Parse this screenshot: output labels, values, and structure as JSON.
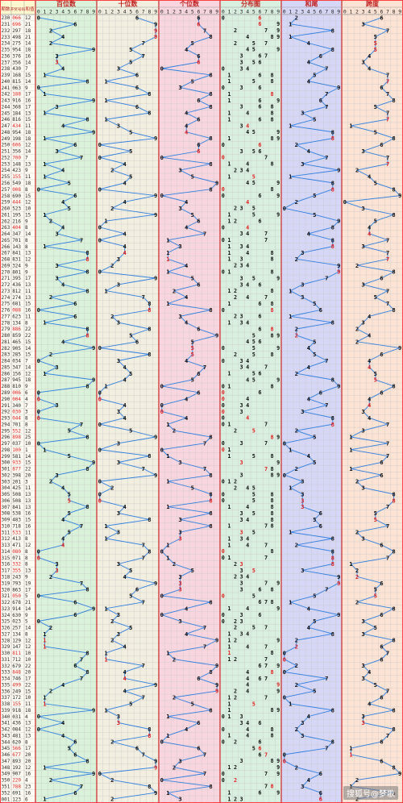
{
  "chart_data": {
    "type": "table",
    "columns": {
      "period": "期数",
      "draw": "开奖号码",
      "sum": "和值"
    },
    "sections": [
      {
        "key": "hundreds",
        "title": "百位数",
        "color": "#d9f2d9"
      },
      {
        "key": "tens",
        "title": "十位数",
        "color": "#f2efe0"
      },
      {
        "key": "ones",
        "title": "个位数",
        "color": "#f9d6df"
      },
      {
        "key": "distribution",
        "title": "分布图",
        "color": "#d9f0e0"
      },
      {
        "key": "sum_tail",
        "title": "和尾",
        "color": "#d6d6f7"
      },
      {
        "key": "span",
        "title": "跨度",
        "color": "#fde3d4"
      }
    ],
    "digits": [
      "0",
      "1",
      "2",
      "3",
      "4",
      "5",
      "6",
      "7",
      "8",
      "9"
    ],
    "rows": [
      {
        "period": "230",
        "draw": "066"
      },
      {
        "period": "231",
        "draw": "696"
      },
      {
        "period": "232",
        "draw": "297"
      },
      {
        "period": "233",
        "draw": "498"
      },
      {
        "period": "234",
        "draw": "275"
      },
      {
        "period": "235",
        "draw": "954"
      },
      {
        "period": "236",
        "draw": "376"
      },
      {
        "period": "237",
        "draw": "356"
      },
      {
        "period": "238",
        "draw": "430"
      },
      {
        "period": "239",
        "draw": "168"
      },
      {
        "period": "240",
        "draw": "815"
      },
      {
        "period": "241",
        "draw": "063"
      },
      {
        "period": "242",
        "draw": "188"
      },
      {
        "period": "243",
        "draw": "916"
      },
      {
        "period": "244",
        "draw": "368"
      },
      {
        "period": "245",
        "draw": "184"
      },
      {
        "period": "246",
        "draw": "816"
      },
      {
        "period": "247",
        "draw": "434"
      },
      {
        "period": "248",
        "draw": "954"
      },
      {
        "period": "249",
        "draw": "198"
      },
      {
        "period": "250",
        "draw": "606"
      },
      {
        "period": "251",
        "draw": "356"
      },
      {
        "period": "252",
        "draw": "700"
      },
      {
        "period": "253",
        "draw": "148"
      },
      {
        "period": "254",
        "draw": "423"
      },
      {
        "period": "255",
        "draw": "155"
      },
      {
        "period": "256",
        "draw": "549"
      },
      {
        "period": "257",
        "draw": "008"
      },
      {
        "period": "258",
        "draw": "690"
      },
      {
        "period": "259",
        "draw": "444"
      },
      {
        "period": "260",
        "draw": "523"
      },
      {
        "period": "261",
        "draw": "195"
      },
      {
        "period": "262",
        "draw": "216"
      },
      {
        "period": "263",
        "draw": "404"
      },
      {
        "period": "264",
        "draw": "347"
      },
      {
        "period": "265",
        "draw": "701"
      },
      {
        "period": "266",
        "draw": "143"
      },
      {
        "period": "267",
        "draw": "841"
      },
      {
        "period": "268",
        "draw": "831"
      },
      {
        "period": "269",
        "draw": "324"
      },
      {
        "period": "270",
        "draw": "801"
      },
      {
        "period": "271",
        "draw": "395"
      },
      {
        "period": "272",
        "draw": "436"
      },
      {
        "period": "273",
        "draw": "812"
      },
      {
        "period": "274",
        "draw": "274"
      },
      {
        "period": "275",
        "draw": "681"
      },
      {
        "period": "276",
        "draw": "088"
      },
      {
        "period": "277",
        "draw": "623"
      },
      {
        "period": "278",
        "draw": "134"
      },
      {
        "period": "279",
        "draw": "886"
      },
      {
        "period": "280",
        "draw": "859"
      },
      {
        "period": "281",
        "draw": "465"
      },
      {
        "period": "282",
        "draw": "905"
      },
      {
        "period": "283",
        "draw": "285"
      },
      {
        "period": "284",
        "draw": "034"
      },
      {
        "period": "285",
        "draw": "347"
      },
      {
        "period": "286",
        "draw": "156"
      },
      {
        "period": "287",
        "draw": "945"
      },
      {
        "period": "288",
        "draw": "810"
      },
      {
        "period": "289",
        "draw": "006"
      },
      {
        "period": "290",
        "draw": "004"
      },
      {
        "period": "291",
        "draw": "340"
      },
      {
        "period": "292",
        "draw": "030"
      },
      {
        "period": "293",
        "draw": "044"
      },
      {
        "period": "294",
        "draw": "701"
      },
      {
        "period": "295",
        "draw": "552"
      },
      {
        "period": "296",
        "draw": "898"
      },
      {
        "period": "297",
        "draw": "037"
      },
      {
        "period": "298",
        "draw": "100"
      },
      {
        "period": "299",
        "draw": "581"
      },
      {
        "period": "300",
        "draw": "933"
      },
      {
        "period": "301",
        "draw": "877"
      },
      {
        "period": "302",
        "draw": "398"
      },
      {
        "period": "303",
        "draw": "201"
      },
      {
        "period": "304",
        "draw": "425"
      },
      {
        "period": "305",
        "draw": "508"
      },
      {
        "period": "306",
        "draw": "508"
      },
      {
        "period": "307",
        "draw": "841"
      },
      {
        "period": "308",
        "draw": "538"
      },
      {
        "period": "309",
        "draw": "483"
      },
      {
        "period": "310",
        "draw": "718"
      },
      {
        "period": "311",
        "draw": "533"
      },
      {
        "period": "312",
        "draw": "413"
      },
      {
        "period": "313",
        "draw": "471"
      },
      {
        "period": "314",
        "draw": "080"
      },
      {
        "period": "315",
        "draw": "071"
      },
      {
        "period": "316",
        "draw": "332"
      },
      {
        "period": "317",
        "draw": "355"
      },
      {
        "period": "318",
        "draw": "243"
      },
      {
        "period": "319",
        "draw": "793"
      },
      {
        "period": "320",
        "draw": "863"
      },
      {
        "period": "321",
        "draw": "050"
      },
      {
        "period": "322",
        "draw": "678"
      },
      {
        "period": "323",
        "draw": "914"
      },
      {
        "period": "324",
        "draw": "630"
      },
      {
        "period": "325",
        "draw": "023"
      },
      {
        "period": "326",
        "draw": "257"
      },
      {
        "period": "327",
        "draw": "134"
      },
      {
        "period": "328",
        "draw": "129"
      },
      {
        "period": "329",
        "draw": "147"
      },
      {
        "period": "330",
        "draw": "811"
      },
      {
        "period": "331",
        "draw": "712"
      },
      {
        "period": "332",
        "draw": "679"
      },
      {
        "period": "333",
        "draw": "848"
      },
      {
        "period": "334",
        "draw": "746"
      },
      {
        "period": "335",
        "draw": "499"
      },
      {
        "period": "336",
        "draw": "249"
      },
      {
        "period": "337",
        "draw": "172"
      },
      {
        "period": "338",
        "draw": "155"
      },
      {
        "period": "339",
        "draw": "918"
      },
      {
        "period": "340",
        "draw": "031"
      },
      {
        "period": "341",
        "draw": "436"
      },
      {
        "period": "342",
        "draw": "084"
      },
      {
        "period": "343",
        "draw": "481"
      },
      {
        "period": "344",
        "draw": "620"
      },
      {
        "period": "345",
        "draw": "566"
      },
      {
        "period": "346",
        "draw": "677"
      },
      {
        "period": "347",
        "draw": "893"
      },
      {
        "period": "348",
        "draw": "192"
      },
      {
        "period": "349",
        "draw": "907"
      },
      {
        "period": "350",
        "draw": "220"
      },
      {
        "period": "351",
        "draw": "788"
      },
      {
        "period": "352",
        "draw": "691"
      },
      {
        "period": "001",
        "draw": "123"
      }
    ]
  },
  "watermark": "搜狐号@梦歌",
  "colors": {
    "line": "#2f7fe0",
    "repeat": "#e02020",
    "special": "#1030e0",
    "digit": "#111111",
    "border": "#ff4040",
    "grid": "#c9c9c9",
    "header_bg": "#fff7d0"
  }
}
